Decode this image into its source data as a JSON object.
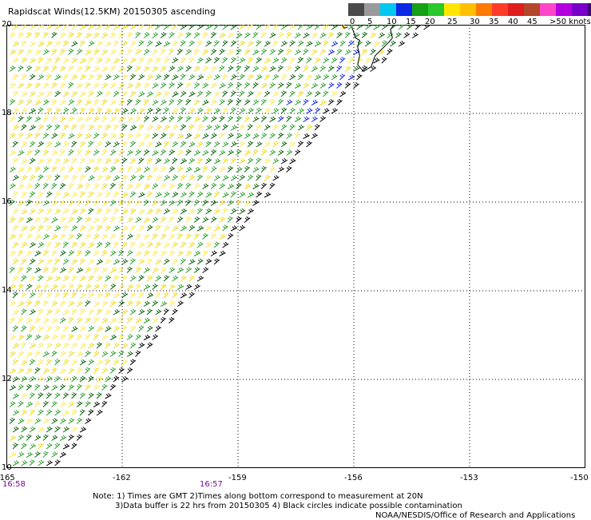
{
  "title": "Rapidscat Winds(12.5KM) 20150305 ascending",
  "legend": {
    "labels": [
      "0",
      "5",
      "10",
      "15",
      "20",
      "25",
      "30",
      "35",
      "40",
      "45",
      ">50 knots"
    ],
    "colors": [
      "#4a4a4a",
      "#9a9a9a",
      "#00c8f0",
      "#0a28e6",
      "#16a016",
      "#2ac82a",
      "#ffe600",
      "#ffc000",
      "#ff7a00",
      "#ff3c28",
      "#e01e1e",
      "#b4462a",
      "#ff46c8",
      "#b400e0",
      "#7800c8",
      "#3c0a78"
    ]
  },
  "axes": {
    "y_labels": [
      "20",
      "18",
      "16",
      "14",
      "12",
      "10"
    ],
    "x_labels": [
      "-165",
      "-162",
      "-159",
      "-156",
      "-153",
      "-150"
    ],
    "x_range": [
      -165,
      -150
    ],
    "y_range": [
      10,
      20
    ]
  },
  "times": [
    "16:58",
    "16:57"
  ],
  "notes": [
    "Note: 1) Times are GMT 2)Times along bottom correspond to measurement at 20N",
    "3)Data buffer is 22 hrs from 20150305 4) Black circles indicate possible contamination",
    "NOAA/NESDIS/Office of Research and Applications"
  ],
  "colors": {
    "barb_yellow": "#f0dc14",
    "barb_yellow_light": "#ffe94a",
    "barb_green": "#2aa02a",
    "barb_green_dark": "#0a640a",
    "barb_blue": "#1428e6",
    "barb_black": "#000000",
    "grid": "#000000",
    "time_label": "#7a0a9a"
  }
}
